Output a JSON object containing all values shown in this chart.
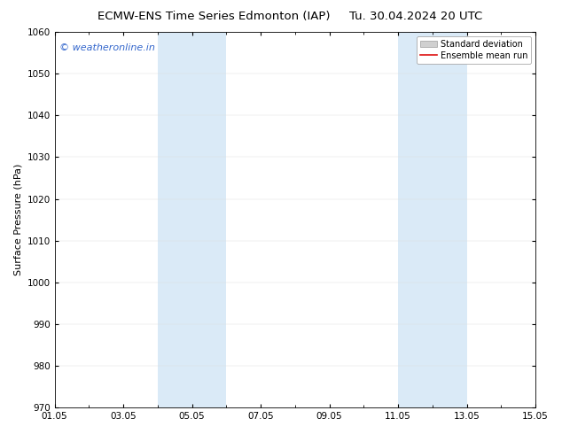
{
  "title_left": "ECMW-ENS Time Series Edmonton (IAP)",
  "title_right": "Tu. 30.04.2024 20 UTC",
  "ylabel": "Surface Pressure (hPa)",
  "watermark": "© weatheronline.in",
  "watermark_color": "#3366cc",
  "ylim": [
    970,
    1060
  ],
  "yticks": [
    970,
    980,
    990,
    1000,
    1010,
    1020,
    1030,
    1040,
    1050,
    1060
  ],
  "xtick_labels": [
    "01.05",
    "03.05",
    "05.05",
    "07.05",
    "09.05",
    "11.05",
    "13.05",
    "15.05"
  ],
  "xtick_days": [
    0,
    2,
    4,
    6,
    8,
    10,
    12,
    14
  ],
  "x_min": 0,
  "x_max": 14,
  "shaded_bands": [
    {
      "start": 3.0,
      "end": 5.0
    },
    {
      "start": 10.0,
      "end": 12.0
    }
  ],
  "shaded_color": "#daeaf7",
  "legend_std_facecolor": "#d0d0d0",
  "legend_std_edgecolor": "#aaaaaa",
  "legend_mean_color": "#dd1111",
  "background_color": "#ffffff",
  "plot_bg_color": "#ffffff",
  "title_fontsize": 9.5,
  "ylabel_fontsize": 8,
  "tick_fontsize": 7.5,
  "watermark_fontsize": 8,
  "legend_fontsize": 7
}
